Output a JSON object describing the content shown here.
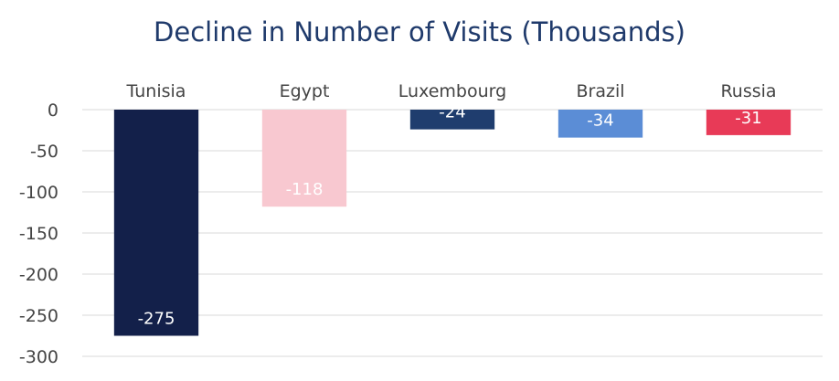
{
  "chart_data": {
    "type": "bar",
    "title": "Decline in Number of Visits (Thousands)",
    "categories": [
      "Tunisia",
      "Egypt",
      "Luxembourg",
      "Brazil",
      "Russia"
    ],
    "values": [
      -275,
      -118,
      -24,
      -34,
      -31
    ],
    "data_labels": [
      "-275",
      "-118",
      "-24",
      "-34",
      "-31"
    ],
    "colors": [
      "#13204a",
      "#f8c8d0",
      "#1f3d6e",
      "#5b8dd6",
      "#e83a57"
    ],
    "ylim": [
      -300,
      0
    ],
    "yticks": [
      0,
      -50,
      -100,
      -150,
      -200,
      -250,
      -300
    ],
    "ytick_labels": [
      "0",
      "-50",
      "-100",
      "-150",
      "-200",
      "-250",
      "-300"
    ],
    "xlabel": "",
    "ylabel": "",
    "grid": true,
    "category_labels_position": "top"
  }
}
